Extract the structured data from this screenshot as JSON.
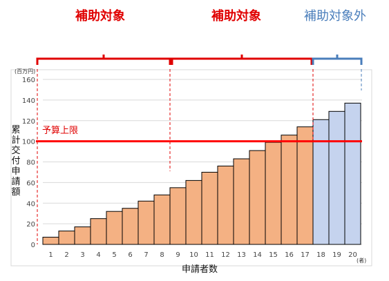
{
  "headers": {
    "left": "補助対象",
    "middle": "補助対象",
    "right": "補助対象外"
  },
  "colors": {
    "subsidized_bar": "#f4b183",
    "unsubsidized_bar": "#c5d3ee",
    "budget_line": "#ff0000",
    "bracket_red": "#e00000",
    "bracket_blue": "#4a7ebb",
    "header_red": "#e00000",
    "header_blue": "#4a7ebb"
  },
  "chart_data": {
    "type": "bar",
    "categories": [
      "1",
      "2",
      "3",
      "4",
      "5",
      "6",
      "7",
      "8",
      "9",
      "10",
      "11",
      "12",
      "13",
      "14",
      "15",
      "16",
      "17",
      "18",
      "19",
      "20"
    ],
    "values": [
      7,
      13,
      17,
      25,
      32,
      35,
      42,
      48,
      55,
      62,
      70,
      76,
      83,
      91,
      99,
      106,
      114,
      121,
      129,
      137
    ],
    "subsidized_count": 17,
    "ylim": [
      0,
      160
    ],
    "yticks": [
      0,
      20,
      40,
      60,
      80,
      100,
      120,
      140,
      160
    ],
    "yunit": "(百万円)",
    "xunit": "(者)",
    "xlabel": "申請者数",
    "ylabel": "累計交付申請額",
    "budget_limit": 100,
    "budget_label": "予算上限",
    "grid": true
  }
}
